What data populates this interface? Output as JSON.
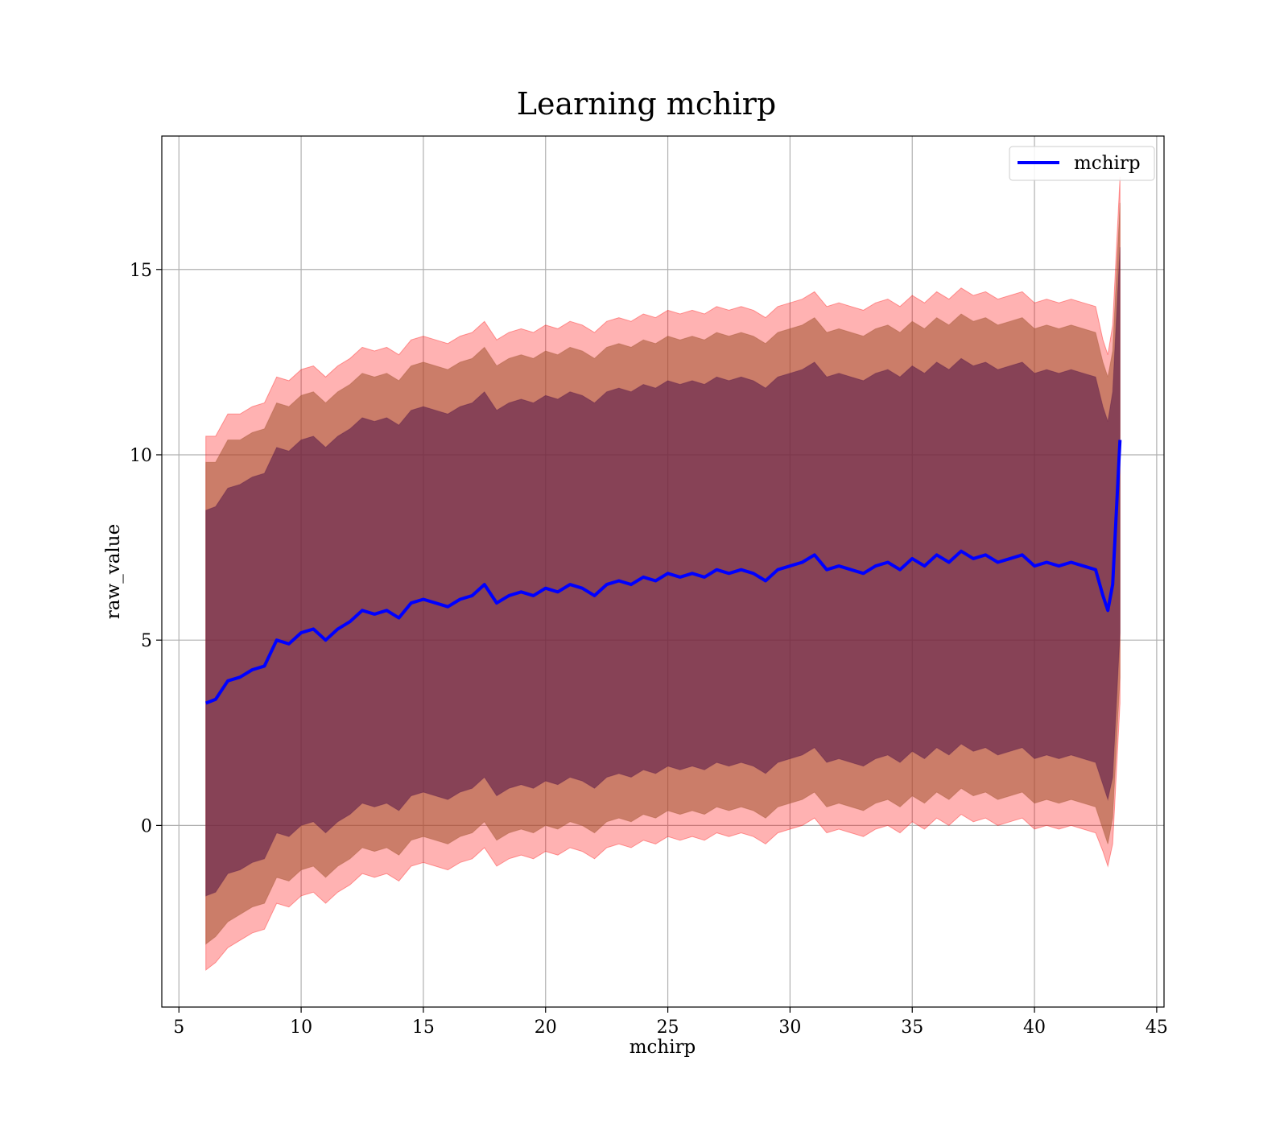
{
  "chart_data": {
    "type": "line",
    "title": "Learning mchirp",
    "xlabel": "mchirp",
    "ylabel": "raw_value",
    "xlim": [
      4.3,
      45.3
    ],
    "ylim": [
      -4.9,
      18.6
    ],
    "xticks": [
      5,
      10,
      15,
      20,
      25,
      30,
      35,
      40,
      45
    ],
    "yticks": [
      0,
      5,
      10,
      15
    ],
    "grid": true,
    "legend_position": "top-right",
    "colors": {
      "mean_line": "#0000ff",
      "band_outer": "#ff0000",
      "band_middle": "#a0522d",
      "band_inner": "#5a1a4a"
    },
    "series": [
      {
        "name": "mchirp",
        "x": [
          6.1,
          6.5,
          7.0,
          7.5,
          8.0,
          8.5,
          9.0,
          9.5,
          10.0,
          10.5,
          11.0,
          11.5,
          12.0,
          12.5,
          13.0,
          13.5,
          14.0,
          14.5,
          15.0,
          15.5,
          16.0,
          16.5,
          17.0,
          17.5,
          18.0,
          18.5,
          19.0,
          19.5,
          20.0,
          20.5,
          21.0,
          21.5,
          22.0,
          22.5,
          23.0,
          23.5,
          24.0,
          24.5,
          25.0,
          25.5,
          26.0,
          26.5,
          27.0,
          27.5,
          28.0,
          28.5,
          29.0,
          29.5,
          30.0,
          30.5,
          31.0,
          31.5,
          32.0,
          32.5,
          33.0,
          33.5,
          34.0,
          34.5,
          35.0,
          35.5,
          36.0,
          36.5,
          37.0,
          37.5,
          38.0,
          38.5,
          39.0,
          39.5,
          40.0,
          40.5,
          41.0,
          41.5,
          42.0,
          42.5,
          42.8,
          43.0,
          43.2,
          43.5
        ],
        "y": [
          3.3,
          3.4,
          3.9,
          4.0,
          4.2,
          4.3,
          5.0,
          4.9,
          5.2,
          5.3,
          5.0,
          5.3,
          5.5,
          5.8,
          5.7,
          5.8,
          5.6,
          6.0,
          6.1,
          6.0,
          5.9,
          6.1,
          6.2,
          6.5,
          6.0,
          6.2,
          6.3,
          6.2,
          6.4,
          6.3,
          6.5,
          6.4,
          6.2,
          6.5,
          6.6,
          6.5,
          6.7,
          6.6,
          6.8,
          6.7,
          6.8,
          6.7,
          6.9,
          6.8,
          6.9,
          6.8,
          6.6,
          6.9,
          7.0,
          7.1,
          7.3,
          6.9,
          7.0,
          6.9,
          6.8,
          7.0,
          7.1,
          6.9,
          7.2,
          7.0,
          7.3,
          7.1,
          7.4,
          7.2,
          7.3,
          7.1,
          7.2,
          7.3,
          7.0,
          7.1,
          7.0,
          7.1,
          7.0,
          6.9,
          6.2,
          5.8,
          6.5,
          10.4
        ]
      }
    ],
    "bands": [
      {
        "sigma": 3,
        "half_width": [
          7.2,
          7.1,
          7.2,
          7.1,
          7.1,
          7.1,
          7.1,
          7.1,
          7.1,
          7.1,
          7.1,
          7.1,
          7.1,
          7.1,
          7.1,
          7.1,
          7.1,
          7.1,
          7.1,
          7.1,
          7.1,
          7.1,
          7.1,
          7.1,
          7.1,
          7.1,
          7.1,
          7.1,
          7.1,
          7.1,
          7.1,
          7.1,
          7.1,
          7.1,
          7.1,
          7.1,
          7.1,
          7.1,
          7.1,
          7.1,
          7.1,
          7.1,
          7.1,
          7.1,
          7.1,
          7.1,
          7.1,
          7.1,
          7.1,
          7.1,
          7.1,
          7.1,
          7.1,
          7.1,
          7.1,
          7.1,
          7.1,
          7.1,
          7.1,
          7.1,
          7.1,
          7.1,
          7.1,
          7.1,
          7.1,
          7.1,
          7.1,
          7.1,
          7.1,
          7.1,
          7.1,
          7.1,
          7.1,
          7.1,
          6.9,
          6.9,
          7.0,
          7.1
        ]
      },
      {
        "sigma": 2,
        "half_width": [
          6.5,
          6.4,
          6.5,
          6.4,
          6.4,
          6.4,
          6.4,
          6.4,
          6.4,
          6.4,
          6.4,
          6.4,
          6.4,
          6.4,
          6.4,
          6.4,
          6.4,
          6.4,
          6.4,
          6.4,
          6.4,
          6.4,
          6.4,
          6.4,
          6.4,
          6.4,
          6.4,
          6.4,
          6.4,
          6.4,
          6.4,
          6.4,
          6.4,
          6.4,
          6.4,
          6.4,
          6.4,
          6.4,
          6.4,
          6.4,
          6.4,
          6.4,
          6.4,
          6.4,
          6.4,
          6.4,
          6.4,
          6.4,
          6.4,
          6.4,
          6.4,
          6.4,
          6.4,
          6.4,
          6.4,
          6.4,
          6.4,
          6.4,
          6.4,
          6.4,
          6.4,
          6.4,
          6.4,
          6.4,
          6.4,
          6.4,
          6.4,
          6.4,
          6.4,
          6.4,
          6.4,
          6.4,
          6.4,
          6.4,
          6.3,
          6.3,
          6.3,
          6.4
        ]
      },
      {
        "sigma": 1,
        "half_width": [
          5.2,
          5.2,
          5.2,
          5.2,
          5.2,
          5.2,
          5.2,
          5.2,
          5.2,
          5.2,
          5.2,
          5.2,
          5.2,
          5.2,
          5.2,
          5.2,
          5.2,
          5.2,
          5.2,
          5.2,
          5.2,
          5.2,
          5.2,
          5.2,
          5.2,
          5.2,
          5.2,
          5.2,
          5.2,
          5.2,
          5.2,
          5.2,
          5.2,
          5.2,
          5.2,
          5.2,
          5.2,
          5.2,
          5.2,
          5.2,
          5.2,
          5.2,
          5.2,
          5.2,
          5.2,
          5.2,
          5.2,
          5.2,
          5.2,
          5.2,
          5.2,
          5.2,
          5.2,
          5.2,
          5.2,
          5.2,
          5.2,
          5.2,
          5.2,
          5.2,
          5.2,
          5.2,
          5.2,
          5.2,
          5.2,
          5.2,
          5.2,
          5.2,
          5.2,
          5.2,
          5.2,
          5.2,
          5.2,
          5.2,
          5.1,
          5.1,
          5.2,
          5.2
        ]
      }
    ]
  }
}
